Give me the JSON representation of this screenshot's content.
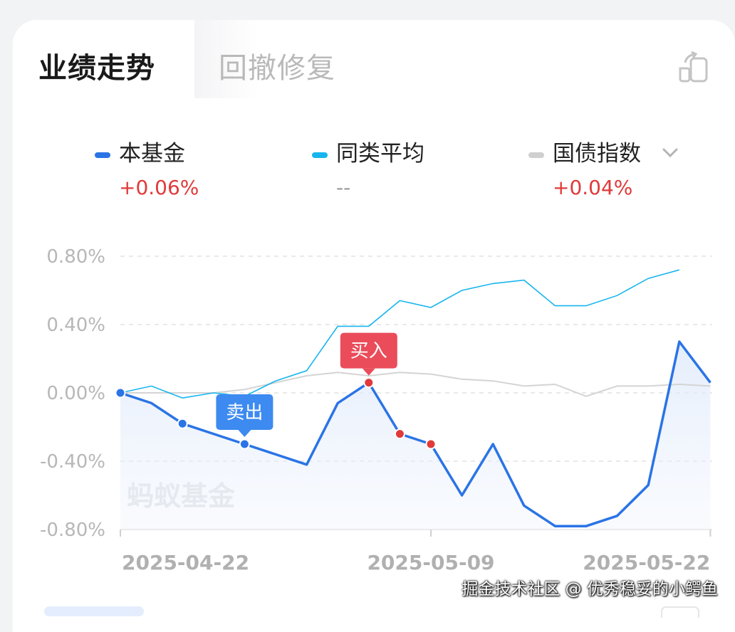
{
  "tabs": [
    {
      "label": "业绩走势",
      "active": true
    },
    {
      "label": "回撤修复",
      "active": false
    }
  ],
  "share_icon": "share-card-icon",
  "legend": [
    {
      "name": "本基金",
      "value": "+0.06%",
      "color": "#2a74e6",
      "value_color": "#e03a3a"
    },
    {
      "name": "同类平均",
      "value": "--",
      "color": "#17b5ee",
      "value_color": "#9a9a9a"
    },
    {
      "name": "国债指数",
      "value": "+0.04%",
      "color": "#cfcfcf",
      "value_color": "#e03a3a",
      "dropdown_icon": "chevron-down-icon"
    }
  ],
  "watermark": "蚂蚁基金",
  "credit": "掘金技术社区 @ 优秀稳妥的小鳄鱼",
  "colors": {
    "fund": "#2a74e6",
    "peer": "#17b5ee",
    "bond": "#d4d4d4",
    "buy": "#ea4c5a",
    "sell": "#3d8af0",
    "grid": "#e2e2e2"
  },
  "chart_data": {
    "type": "line",
    "ylim": [
      -0.8,
      0.8
    ],
    "y_ticks": [
      "0.80%",
      "0.40%",
      "0.00%",
      "-0.40%",
      "-0.80%"
    ],
    "x_tick_labels": [
      "2025-04-22",
      "2025-05-09",
      "2025-05-22"
    ],
    "x_tick_indices": [
      0,
      10,
      19
    ],
    "grid": true,
    "series": [
      {
        "name": "本基金",
        "values": [
          0.0,
          -0.06,
          -0.18,
          -0.24,
          -0.3,
          -0.36,
          -0.42,
          -0.06,
          0.06,
          -0.24,
          -0.3,
          -0.6,
          -0.3,
          -0.66,
          -0.78,
          -0.78,
          -0.72,
          -0.54,
          0.3,
          0.06
        ]
      },
      {
        "name": "同类平均",
        "values": [
          0.0,
          0.04,
          -0.03,
          0.0,
          -0.02,
          0.07,
          0.13,
          0.39,
          0.39,
          0.54,
          0.5,
          0.6,
          0.64,
          0.66,
          0.51,
          0.51,
          0.57,
          0.67,
          0.72
        ]
      },
      {
        "name": "国债指数",
        "values": [
          0.0,
          0.0,
          0.0,
          0.0,
          0.02,
          0.06,
          0.1,
          0.12,
          0.1,
          0.12,
          0.11,
          0.08,
          0.07,
          0.04,
          0.05,
          -0.02,
          0.04,
          0.04,
          0.05,
          0.04
        ]
      }
    ],
    "markers": [
      {
        "index": 0,
        "type": "point",
        "color": "#2a74e6"
      },
      {
        "index": 2,
        "type": "point",
        "color": "#2a74e6"
      },
      {
        "index": 4,
        "type": "sell",
        "label": "卖出",
        "color": "#2a74e6"
      },
      {
        "index": 8,
        "type": "buy",
        "label": "买入",
        "color": "#e03a3a"
      },
      {
        "index": 9,
        "type": "point",
        "color": "#e03a3a"
      },
      {
        "index": 10,
        "type": "point",
        "color": "#e03a3a"
      }
    ]
  }
}
